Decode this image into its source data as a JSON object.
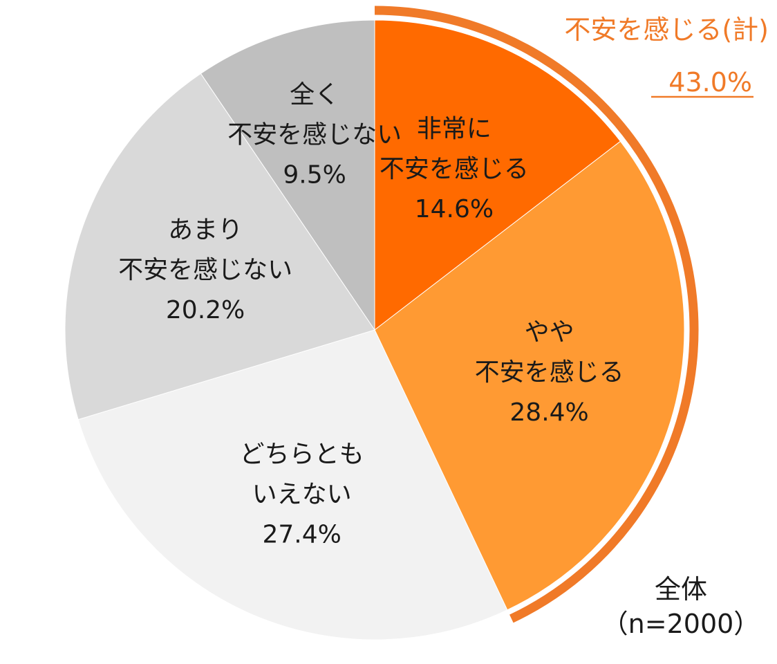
{
  "chart_data": {
    "type": "pie",
    "slices": [
      {
        "label_lines": [
          "非常に",
          "不安を感じる"
        ],
        "value": 14.6,
        "value_label": "14.6%",
        "color": "#ff6a00"
      },
      {
        "label_lines": [
          "やや",
          "不安を感じる"
        ],
        "value": 28.4,
        "value_label": "28.4%",
        "color": "#ff9a33"
      },
      {
        "label_lines": [
          "どちらとも",
          "いえない"
        ],
        "value": 27.4,
        "value_label": "27.4%",
        "color": "#f2f2f2"
      },
      {
        "label_lines": [
          "あまり",
          "不安を感じない"
        ],
        "value": 20.2,
        "value_label": "20.2%",
        "color": "#d9d9d9"
      },
      {
        "label_lines": [
          "全く",
          "不安を感じない"
        ],
        "value": 9.5,
        "value_label": "9.5%",
        "color": "#bfbfbf"
      }
    ],
    "callout": {
      "label": "不安を感じる(計)",
      "value_label": "43.0%",
      "value": 43.0,
      "color": "#f07a28"
    },
    "sample": {
      "line1": "全体",
      "line2": "（n=2000）"
    },
    "start_direction": "top",
    "clockwise": true
  }
}
